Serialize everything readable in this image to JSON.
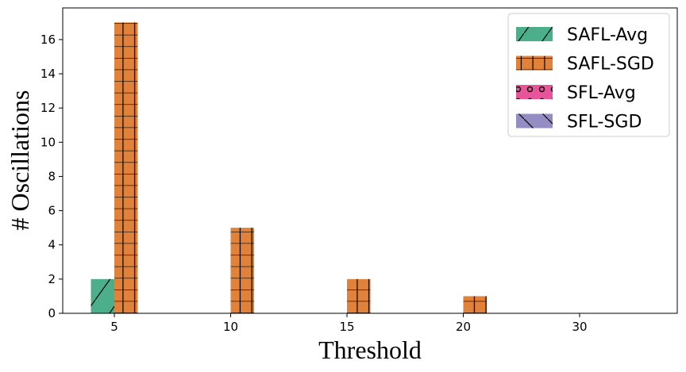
{
  "chart_data": {
    "type": "bar",
    "xlabel": "Threshold",
    "ylabel": "# Oscillations",
    "categories": [
      "5",
      "10",
      "15",
      "20",
      "30"
    ],
    "ylim": [
      0,
      17.85
    ],
    "yticks": [
      0,
      2,
      4,
      6,
      8,
      10,
      12,
      14,
      16
    ],
    "grid": false,
    "legend_position": "top-right",
    "series": [
      {
        "name": "SAFL-Avg",
        "values": [
          2,
          0,
          0,
          0,
          0
        ],
        "color": "#4caf8c",
        "hatch": "diagonal"
      },
      {
        "name": "SAFL-SGD",
        "values": [
          17,
          5,
          2,
          1,
          0
        ],
        "color": "#e0823a",
        "hatch": "grid"
      },
      {
        "name": "SFL-Avg",
        "values": [
          0,
          0,
          0,
          0,
          0
        ],
        "color": "#e7549a",
        "hatch": "circles"
      },
      {
        "name": "SFL-SGD",
        "values": [
          0,
          0,
          0,
          0,
          0
        ],
        "color": "#948dc4",
        "hatch": "backslash"
      }
    ]
  }
}
